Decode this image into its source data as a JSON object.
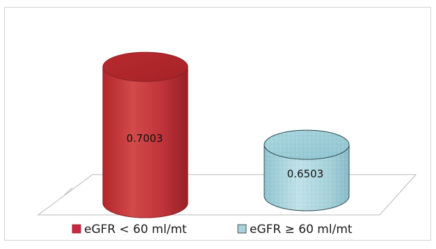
{
  "chart_data": {
    "type": "bar",
    "style": "3d-cylinder",
    "categories": [
      "eGFR < 60 ml/mt",
      "eGFR ≥ 60 ml/mt"
    ],
    "values": [
      0.7003,
      0.6503
    ],
    "value_labels": [
      "0.7003",
      "0.6503"
    ],
    "colors": [
      "#c0313a",
      "#a9d3dc"
    ],
    "title": "",
    "xlabel": "",
    "ylabel": "",
    "ylim": [
      0.62,
      0.72
    ],
    "grid": false,
    "legend_position": "bottom",
    "legend": [
      {
        "label": "eGFR < 60 ml/mt",
        "color": "#c8283f"
      },
      {
        "label": "eGFR ≥ 60 ml/mt",
        "color": "#a9d3dc"
      }
    ]
  }
}
